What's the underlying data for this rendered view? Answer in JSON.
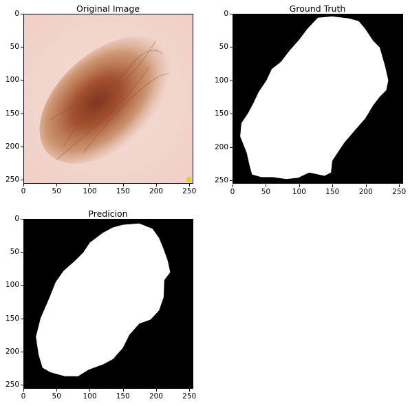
{
  "figure": {
    "panels": [
      {
        "id": "original",
        "title": "Original Image",
        "kind": "photo",
        "x_ticks": [
          "0",
          "50",
          "100",
          "150",
          "200",
          "250"
        ],
        "y_ticks": [
          "0",
          "50",
          "100",
          "150",
          "200",
          "250"
        ],
        "colors": {
          "skin": "#f2d6cf",
          "lesion_outer": "#c98a63",
          "lesion_core": "#8a3a22",
          "marker": "#e8d21a"
        }
      },
      {
        "id": "ground_truth",
        "title": "Ground Truth",
        "kind": "mask",
        "x_ticks": [
          "0",
          "50",
          "100",
          "150",
          "200",
          "250"
        ],
        "y_ticks": [
          "0",
          "50",
          "100",
          "150",
          "200",
          "250"
        ],
        "colors": {
          "background": "#000000",
          "mask": "#ffffff"
        }
      },
      {
        "id": "prediction",
        "title": "Predicion",
        "kind": "mask",
        "x_ticks": [
          "0",
          "50",
          "100",
          "150",
          "200",
          "250"
        ],
        "y_ticks": [
          "0",
          "50",
          "100",
          "150",
          "200",
          "250"
        ],
        "colors": {
          "background": "#000000",
          "mask": "#ffffff"
        }
      }
    ]
  }
}
